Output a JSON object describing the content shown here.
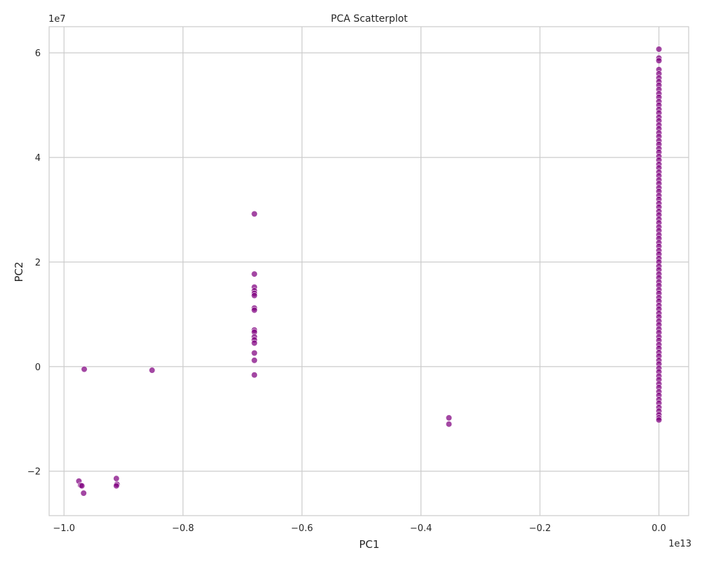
{
  "chart_data": {
    "type": "scatter",
    "title": "PCA Scatterplot",
    "xlabel": "PC1",
    "ylabel": "PC2",
    "x_offset_label": "1e13",
    "y_offset_label": "1e7",
    "x_scale": 10000000000000.0,
    "y_scale": 10000000.0,
    "xlim": [
      -1.025,
      0.05
    ],
    "ylim": [
      -2.85,
      6.5
    ],
    "xticks": [
      -1.0,
      -0.8,
      -0.6,
      -0.4,
      -0.2,
      0.0
    ],
    "xtick_labels": [
      "−1.0",
      "−0.8",
      "−0.6",
      "−0.4",
      "−0.2",
      "0.0"
    ],
    "yticks": [
      -2,
      0,
      2,
      4,
      6
    ],
    "ytick_labels": [
      "−2",
      "0",
      "2",
      "4",
      "6"
    ],
    "grid": true,
    "point_color": "#800080",
    "series": [
      {
        "points": [
          [
            -0.966,
            -0.05
          ],
          [
            -0.852,
            -0.07
          ],
          [
            -0.975,
            -2.19
          ],
          [
            -0.972,
            -2.27
          ],
          [
            -0.97,
            -2.28
          ],
          [
            -0.967,
            -2.42
          ],
          [
            -0.912,
            -2.14
          ],
          [
            -0.911,
            -2.25
          ],
          [
            -0.912,
            -2.28
          ],
          [
            -0.68,
            2.92
          ],
          [
            -0.68,
            1.77
          ],
          [
            -0.68,
            1.52
          ],
          [
            -0.68,
            1.45
          ],
          [
            -0.68,
            1.4
          ],
          [
            -0.68,
            1.36
          ],
          [
            -0.68,
            1.12
          ],
          [
            -0.68,
            1.08
          ],
          [
            -0.68,
            0.7
          ],
          [
            -0.68,
            0.66
          ],
          [
            -0.68,
            0.57
          ],
          [
            -0.68,
            0.51
          ],
          [
            -0.68,
            0.45
          ],
          [
            -0.68,
            0.26
          ],
          [
            -0.68,
            0.12
          ],
          [
            -0.68,
            -0.16
          ],
          [
            -0.353,
            -0.98
          ],
          [
            -0.353,
            -1.1
          ],
          [
            0.0,
            6.07
          ],
          [
            0.0,
            5.9
          ],
          [
            0.0,
            5.85
          ],
          [
            0.0,
            5.68
          ],
          [
            0.0,
            5.6
          ],
          [
            0.0,
            5.52
          ],
          [
            0.0,
            5.45
          ],
          [
            0.0,
            5.38
          ],
          [
            0.0,
            5.3
          ],
          [
            0.0,
            5.22
          ],
          [
            0.0,
            5.15
          ],
          [
            0.0,
            5.07
          ],
          [
            0.0,
            5.0
          ],
          [
            0.0,
            4.92
          ],
          [
            0.0,
            4.85
          ],
          [
            0.0,
            4.77
          ],
          [
            0.0,
            4.7
          ],
          [
            0.0,
            4.62
          ],
          [
            0.0,
            4.55
          ],
          [
            0.0,
            4.47
          ],
          [
            0.0,
            4.4
          ],
          [
            0.0,
            4.32
          ],
          [
            0.0,
            4.25
          ],
          [
            0.0,
            4.17
          ],
          [
            0.0,
            4.1
          ],
          [
            0.0,
            4.02
          ],
          [
            0.0,
            3.95
          ],
          [
            0.0,
            3.87
          ],
          [
            0.0,
            3.8
          ],
          [
            0.0,
            3.72
          ],
          [
            0.0,
            3.65
          ],
          [
            0.0,
            3.57
          ],
          [
            0.0,
            3.5
          ],
          [
            0.0,
            3.42
          ],
          [
            0.0,
            3.35
          ],
          [
            0.0,
            3.27
          ],
          [
            0.0,
            3.2
          ],
          [
            0.0,
            3.12
          ],
          [
            0.0,
            3.05
          ],
          [
            0.0,
            2.97
          ],
          [
            0.0,
            2.9
          ],
          [
            0.0,
            2.82
          ],
          [
            0.0,
            2.75
          ],
          [
            0.0,
            2.67
          ],
          [
            0.0,
            2.6
          ],
          [
            0.0,
            2.52
          ],
          [
            0.0,
            2.45
          ],
          [
            0.0,
            2.37
          ],
          [
            0.0,
            2.3
          ],
          [
            0.0,
            2.22
          ],
          [
            0.0,
            2.15
          ],
          [
            0.0,
            2.07
          ],
          [
            0.0,
            2.0
          ],
          [
            0.0,
            1.92
          ],
          [
            0.0,
            1.85
          ],
          [
            0.0,
            1.77
          ],
          [
            0.0,
            1.7
          ],
          [
            0.0,
            1.62
          ],
          [
            0.0,
            1.55
          ],
          [
            0.0,
            1.47
          ],
          [
            0.0,
            1.4
          ],
          [
            0.0,
            1.32
          ],
          [
            0.0,
            1.25
          ],
          [
            0.0,
            1.17
          ],
          [
            0.0,
            1.1
          ],
          [
            0.0,
            1.02
          ],
          [
            0.0,
            0.95
          ],
          [
            0.0,
            0.87
          ],
          [
            0.0,
            0.8
          ],
          [
            0.0,
            0.72
          ],
          [
            0.0,
            0.65
          ],
          [
            0.0,
            0.57
          ],
          [
            0.0,
            0.5
          ],
          [
            0.0,
            0.42
          ],
          [
            0.0,
            0.35
          ],
          [
            0.0,
            0.27
          ],
          [
            0.0,
            0.2
          ],
          [
            0.0,
            0.12
          ],
          [
            0.0,
            0.05
          ],
          [
            0.0,
            -0.03
          ],
          [
            0.0,
            -0.1
          ],
          [
            0.0,
            -0.18
          ],
          [
            0.0,
            -0.25
          ],
          [
            0.0,
            -0.33
          ],
          [
            0.0,
            -0.4
          ],
          [
            0.0,
            -0.48
          ],
          [
            0.0,
            -0.55
          ],
          [
            0.0,
            -0.63
          ],
          [
            0.0,
            -0.7
          ],
          [
            0.0,
            -0.78
          ],
          [
            0.0,
            -0.85
          ],
          [
            0.0,
            -0.92
          ],
          [
            0.0,
            -0.98
          ],
          [
            0.0,
            -1.02
          ]
        ]
      }
    ]
  }
}
